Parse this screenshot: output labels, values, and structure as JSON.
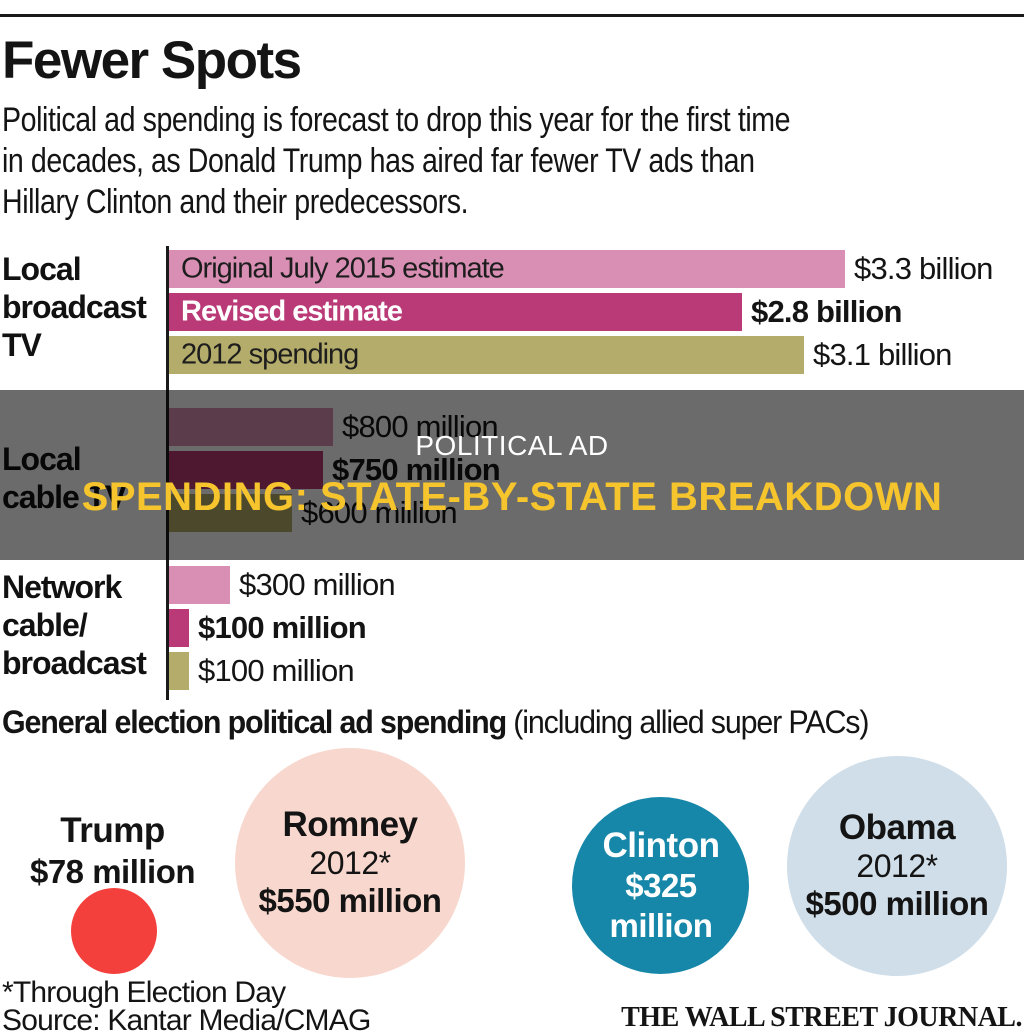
{
  "header": {
    "title": "Fewer Spots",
    "subtitle": "Political ad spending is forecast to drop this year for the first time\nin decades, as Donald Trump has aired far fewer TV ads than\nHillary Clinton and their predecessors."
  },
  "overlay_banner": {
    "line1": "POLITICAL AD",
    "line2": "SPENDING: STATE-BY-STATE BREAKDOWN",
    "line1_color": "#ffffff",
    "line2_color": "#f6c42d"
  },
  "chart_data": {
    "type": "bar",
    "orientation": "horizontal",
    "unit": "million USD",
    "series_colors": {
      "original_estimate": "#d98fb4",
      "revised_estimate": "#b93a76",
      "spending_2012": "#b4ac6a"
    },
    "groups": [
      {
        "category": "Local broadcast TV",
        "category_display": "Local\nbroadcast\nTV",
        "bars": [
          {
            "label": "Original July 2015 estimate",
            "series": "original_estimate",
            "value": 3300,
            "value_text": "$3.3 billion",
            "emphasis": false
          },
          {
            "label": "Revised estimate",
            "series": "revised_estimate",
            "value": 2800,
            "value_text": "$2.8 billion",
            "emphasis": true
          },
          {
            "label": "2012 spending",
            "series": "spending_2012",
            "value": 3100,
            "value_text": "$3.1 billion",
            "emphasis": false
          }
        ]
      },
      {
        "category": "Local cable TV",
        "category_display": "Local\ncable TV",
        "bars": [
          {
            "label": "",
            "series": "original_estimate",
            "value": 800,
            "value_text": "$800 million",
            "emphasis": false
          },
          {
            "label": "",
            "series": "revised_estimate",
            "value": 750,
            "value_text": "$750 million",
            "emphasis": true
          },
          {
            "label": "",
            "series": "spending_2012",
            "value": 600,
            "value_text": "$600 million",
            "emphasis": false
          }
        ]
      },
      {
        "category": "Network cable/broadcast",
        "category_display": "Network\ncable/\nbroadcast",
        "bars": [
          {
            "label": "",
            "series": "original_estimate",
            "value": 300,
            "value_text": "$300 million",
            "emphasis": false
          },
          {
            "label": "",
            "series": "revised_estimate",
            "value": 100,
            "value_text": "$100 million",
            "emphasis": true
          },
          {
            "label": "",
            "series": "spending_2012",
            "value": 100,
            "value_text": "$100 million",
            "emphasis": false
          }
        ]
      }
    ]
  },
  "bubble_chart": {
    "type": "bubble",
    "title_bold": "General election political ad spending",
    "title_regular": " (including allied super PACs)",
    "bubbles": [
      {
        "name": "Trump",
        "value": 78,
        "value_text": "$78 million",
        "color": "#f4403c",
        "label_outside": true
      },
      {
        "name": "Romney",
        "year": "2012*",
        "value": 550,
        "value_text": "$550 million",
        "color": "#f8d8ce"
      },
      {
        "name": "Clinton",
        "value": 325,
        "value_text": "$325\nmillion",
        "color": "#1687a8",
        "text_color": "#ffffff"
      },
      {
        "name": "Obama",
        "year": "2012*",
        "value": 500,
        "value_text": "$500 million",
        "color": "#cfdee9"
      }
    ]
  },
  "footer": {
    "note": "*Through Election Day",
    "source": "Source: Kantar Media/CMAG",
    "brand": "THE WALL STREET JOURNAL."
  }
}
